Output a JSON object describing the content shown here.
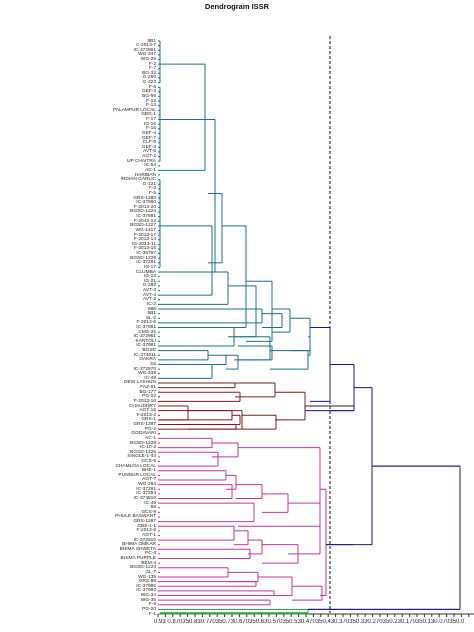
{
  "title": "Dendrogram  ISSR",
  "axis_text": "0.93 0.870350.830.770350.730.670350.630.570350.530.470350.430.370350.330.270350.230.170350.130.070350.03 0.070355",
  "leaves": [
    "5B1",
    "C-2013-7",
    "IC-372961",
    "WG-347",
    "WG-29",
    "F-2",
    "F-7",
    "BG-32",
    "G-250",
    "G-323",
    "F-6",
    "GEF-3",
    "BG-66",
    "F-12",
    "F-13",
    "PALAMPUR LOCAL",
    "GBG-1",
    "F-17",
    "IG-16",
    "F-15",
    "GEF-4",
    "GEF-7",
    "CLF-5",
    "GEF-3",
    "AVT-5",
    "AGT-2",
    "UP CHAITRA",
    "IC-54",
    "AC-1",
    "HARIBAN",
    "INDIAN GARLIC",
    "G-121",
    "F-3",
    "F-5",
    "GRS-1280",
    "IC-37960",
    "F-2013-20",
    "BGSD-1224",
    "IC-37981",
    "F-2013-12",
    "BGSD-1227",
    "WG-1417",
    "F-2013-17",
    "F-2013-14",
    "IG-2013-11",
    "F-2013-16",
    "IC-35797",
    "BGSD-1228",
    "IC-37291",
    "IG-17",
    "CLUMBA",
    "IG-22",
    "IG-21",
    "G-282",
    "AVT-3",
    "AVT-4",
    "AVT-2",
    "IC-2",
    "586",
    "5B1",
    "SL-2",
    "F-2013-6",
    "IC-37981",
    "CMS-25",
    "IC-372961",
    "KANTOLI",
    "IC-37981",
    "BGSD",
    "IC-374811",
    "OAKRA",
    "S6",
    "IC-372970",
    "WG-339",
    "IC-49",
    "DESI LASHUN",
    "FAZ-61",
    "BG-177",
    "PG-22",
    "F-2013-16",
    "CHAUDHRY",
    "AGT-15",
    "F-2013-2",
    "GRS-1",
    "GRS-1397",
    "PG-2",
    "GODAVARI",
    "AC-1",
    "BGSD-1228",
    "IC-10-2",
    "BGSD-1225",
    "SINGLE-1-44",
    "GCS-6",
    "CHAMLOA LOCAL",
    "BHE-1",
    "PUNNUR LOCAL",
    "AGT-7",
    "WG-294",
    "IC-37291",
    "IC-37294",
    "IC-374810",
    "IC-49",
    "58",
    "GCS-9",
    "PHULE BASWANT",
    "GRS-1287",
    "GBS-1-1",
    "F-2013-5",
    "AGT-1",
    "IC-372910",
    "BHIMA OMKAR",
    "BHIMA SHWETA",
    "PC-4",
    "BHIMA PURPLE",
    "BEM-4",
    "BGSD-1224",
    "GL-7",
    "WG-135",
    "GRS-98",
    "IC-37995",
    "IC-37993",
    "WG-34",
    "WG-35",
    "F-9",
    "PG-20",
    "F-1"
  ],
  "colors": {
    "teal": "#1f6f8b",
    "darkred": "#7b1c1c",
    "magenta": "#c2379a",
    "navy": "#1b1b7a",
    "green": "#2e9e3a",
    "cutline": "#111111",
    "axis": "#333333"
  }
}
